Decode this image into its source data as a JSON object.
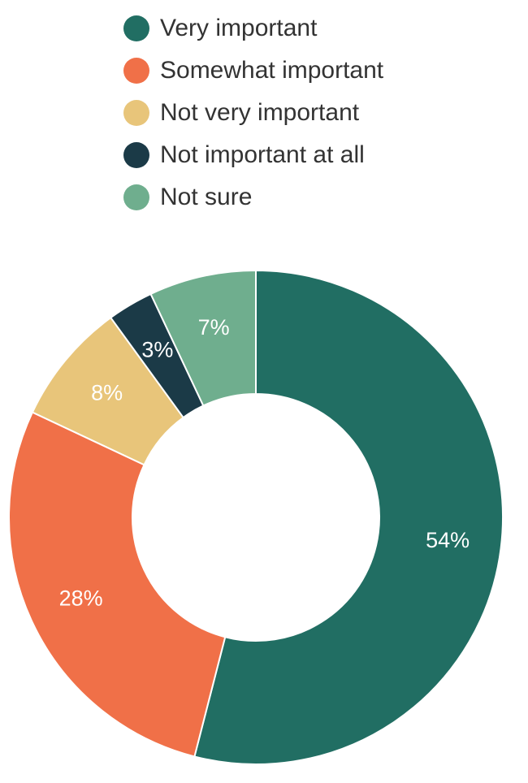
{
  "chart_data": {
    "type": "donut",
    "categories": [
      "Very important",
      "Somewhat important",
      "Not very important",
      "Not important at all",
      "Not sure"
    ],
    "values": [
      54,
      28,
      8,
      3,
      7
    ],
    "value_labels": [
      "54%",
      "28%",
      "8%",
      "3%",
      "7%"
    ],
    "colors": [
      "#216e63",
      "#f07048",
      "#e8c57a",
      "#1b3a47",
      "#6fae8e"
    ],
    "legend": "top"
  }
}
